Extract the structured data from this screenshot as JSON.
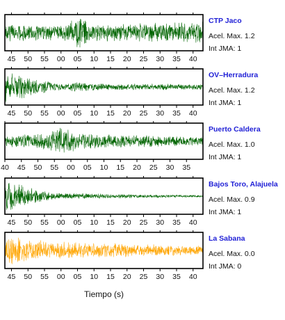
{
  "chart_data": {
    "type": "line",
    "xlabel": "Tiempo (s)",
    "colors": {
      "default_trace": "#006400",
      "zero_trace": "#ffa500",
      "station_name": "#1f1fd6"
    },
    "panels": [
      {
        "station": "CTP Jaco",
        "accel_label": "Acel. Max. 1.2",
        "jma_label": "Int JMA: 1",
        "trace_color": "#006400",
        "tick_labels": [
          "45",
          "50",
          "55",
          "00",
          "05",
          "10",
          "15",
          "20",
          "25",
          "30",
          "35",
          "40"
        ],
        "x_start": 43,
        "seconds_per_tick": 5,
        "envelope": {
          "start": 0.55,
          "mid": 0.45,
          "burst_at": 20,
          "burst_amp": 1.0,
          "end": 0.7
        }
      },
      {
        "station": "OV–Herradura",
        "accel_label": "Acel. Max. 1.2",
        "jma_label": "Int JMA: 1",
        "trace_color": "#006400",
        "tick_labels": [
          "45",
          "50",
          "55",
          "00",
          "05",
          "10",
          "15",
          "20",
          "25",
          "30",
          "35",
          "40"
        ],
        "x_start": 43,
        "seconds_per_tick": 5,
        "envelope": {
          "start": 1.0,
          "mid": 0.25,
          "burst_at": 20,
          "burst_amp": 0.3,
          "end": 0.18
        }
      },
      {
        "station": "Puerto Caldera",
        "accel_label": "Acel. Max. 1.0",
        "jma_label": "Int JMA: 1",
        "trace_color": "#006400",
        "tick_labels": [
          "40",
          "45",
          "50",
          "55",
          "00",
          "05",
          "10",
          "15",
          "20",
          "25",
          "30",
          "35"
        ],
        "x_start": 40,
        "seconds_per_tick": 5,
        "envelope": {
          "start": 0.35,
          "mid": 0.55,
          "burst_at": 15,
          "burst_amp": 0.9,
          "end": 0.3
        }
      },
      {
        "station": "Bajos Toro, Alajuela",
        "accel_label": "Acel. Max. 0.9",
        "jma_label": "Int JMA: 1",
        "trace_color": "#006400",
        "tick_labels": [
          "45",
          "50",
          "55",
          "00",
          "05",
          "10",
          "15",
          "20",
          "25",
          "30",
          "35",
          "40"
        ],
        "x_start": 43,
        "seconds_per_tick": 5,
        "envelope": {
          "start": 0.95,
          "mid": 0.2,
          "burst_at": 10,
          "burst_amp": 0.2,
          "end": 0.06
        }
      },
      {
        "station": "La Sabana",
        "accel_label": "Acel. Max. 0.0",
        "jma_label": "Int JMA: 0",
        "trace_color": "#ffa500",
        "tick_labels": [
          "45",
          "50",
          "55",
          "00",
          "05",
          "10",
          "15",
          "20",
          "25",
          "30",
          "35",
          "40"
        ],
        "x_start": 43,
        "seconds_per_tick": 5,
        "envelope": {
          "start": 0.85,
          "mid": 0.55,
          "burst_at": 0,
          "burst_amp": 0.9,
          "end": 0.3
        }
      }
    ]
  }
}
